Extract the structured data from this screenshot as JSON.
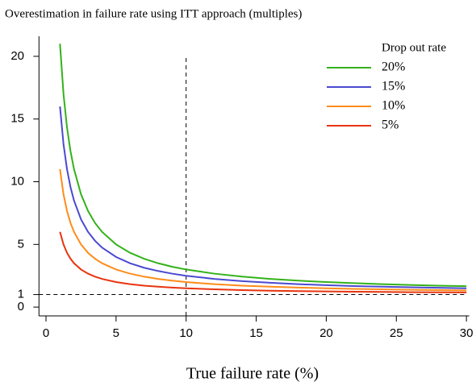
{
  "chart_data": {
    "type": "line",
    "title": "Overestimation in failure rate using ITT approach (multiples)",
    "x_label": "True failure rate (%)",
    "legend_title": "Drop out rate",
    "legend_position": "upper right",
    "x": [
      1,
      1.25,
      1.5,
      1.75,
      2,
      2.5,
      3,
      3.5,
      4,
      5,
      6,
      7,
      8,
      9,
      10,
      12,
      14,
      16,
      18,
      20,
      22,
      24,
      26,
      28,
      30
    ],
    "series": [
      {
        "name": "20%",
        "color": "#33b21a",
        "values": [
          21,
          17,
          14.33,
          12.43,
          11,
          9,
          7.67,
          6.71,
          6,
          5,
          4.33,
          3.86,
          3.5,
          3.22,
          3,
          2.67,
          2.43,
          2.25,
          2.11,
          2,
          1.91,
          1.83,
          1.77,
          1.71,
          1.67
        ]
      },
      {
        "name": "15%",
        "color": "#4a4ad0",
        "values": [
          16,
          13,
          11,
          9.57,
          8.5,
          7,
          6,
          5.29,
          4.75,
          4,
          3.5,
          3.14,
          2.88,
          2.67,
          2.5,
          2.25,
          2.07,
          1.94,
          1.83,
          1.75,
          1.68,
          1.63,
          1.58,
          1.54,
          1.5
        ]
      },
      {
        "name": "10%",
        "color": "#ff8c1a",
        "values": [
          11,
          9,
          7.67,
          6.71,
          6,
          5,
          4.33,
          3.86,
          3.5,
          3,
          2.67,
          2.43,
          2.25,
          2.11,
          2,
          1.83,
          1.71,
          1.63,
          1.56,
          1.5,
          1.45,
          1.42,
          1.38,
          1.36,
          1.33
        ]
      },
      {
        "name": "5%",
        "color": "#e8340f",
        "values": [
          6,
          5,
          4.33,
          3.86,
          3.5,
          3,
          2.67,
          2.43,
          2.25,
          2,
          1.83,
          1.71,
          1.63,
          1.56,
          1.5,
          1.42,
          1.36,
          1.31,
          1.28,
          1.25,
          1.23,
          1.21,
          1.19,
          1.18,
          1.17
        ]
      }
    ],
    "xlim": [
      -0.5,
      30.2
    ],
    "xticks": [
      0,
      5,
      10,
      15,
      20,
      25,
      30
    ],
    "ylim": [
      -0.7,
      21.6
    ],
    "yticks": [
      0,
      1,
      5,
      10,
      15,
      20
    ],
    "hlines": [
      1
    ],
    "vlines": [
      10
    ],
    "grid": false
  }
}
